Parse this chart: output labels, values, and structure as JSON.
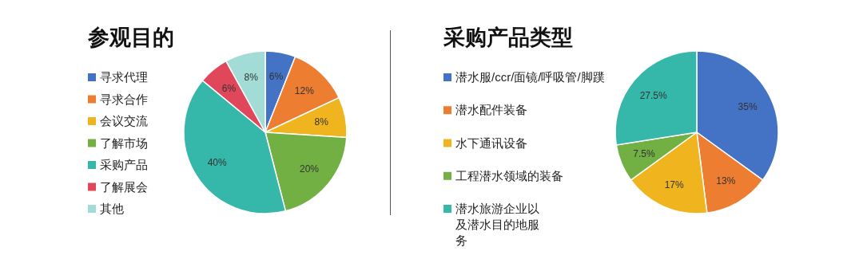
{
  "chart_data": [
    {
      "type": "pie",
      "title": "参观目的",
      "legend": "left",
      "value_labels": [
        "6%",
        "12%",
        "8%",
        "20%",
        "40%",
        "6%",
        "8%"
      ],
      "categories": [
        "寻求代理",
        "寻求合作",
        "会议交流",
        "了解市场",
        "采购产品",
        "了解展会",
        "其他"
      ],
      "values": [
        6,
        12,
        8,
        20,
        40,
        6,
        8
      ],
      "colors": [
        "#4472c4",
        "#ed7d31",
        "#f0b51e",
        "#72b043",
        "#35b7a9",
        "#e0475b",
        "#a3dbd6"
      ]
    },
    {
      "type": "pie",
      "title": "采购产品类型",
      "legend": "left",
      "value_labels": [
        "35%",
        "13%",
        "17%",
        "7.5%",
        "27.5%"
      ],
      "categories": [
        "潜水服/ccr/面镜/呼吸管/脚蹼",
        "潜水配件装备",
        "水下通讯设备",
        "工程潜水领域的装备",
        "潜水旅游企业以及潜水目的地服务"
      ],
      "values": [
        35,
        13,
        17,
        7.5,
        27.5
      ],
      "colors": [
        "#4472c4",
        "#ed7d31",
        "#f0b51e",
        "#72b043",
        "#35b7a9"
      ]
    }
  ]
}
